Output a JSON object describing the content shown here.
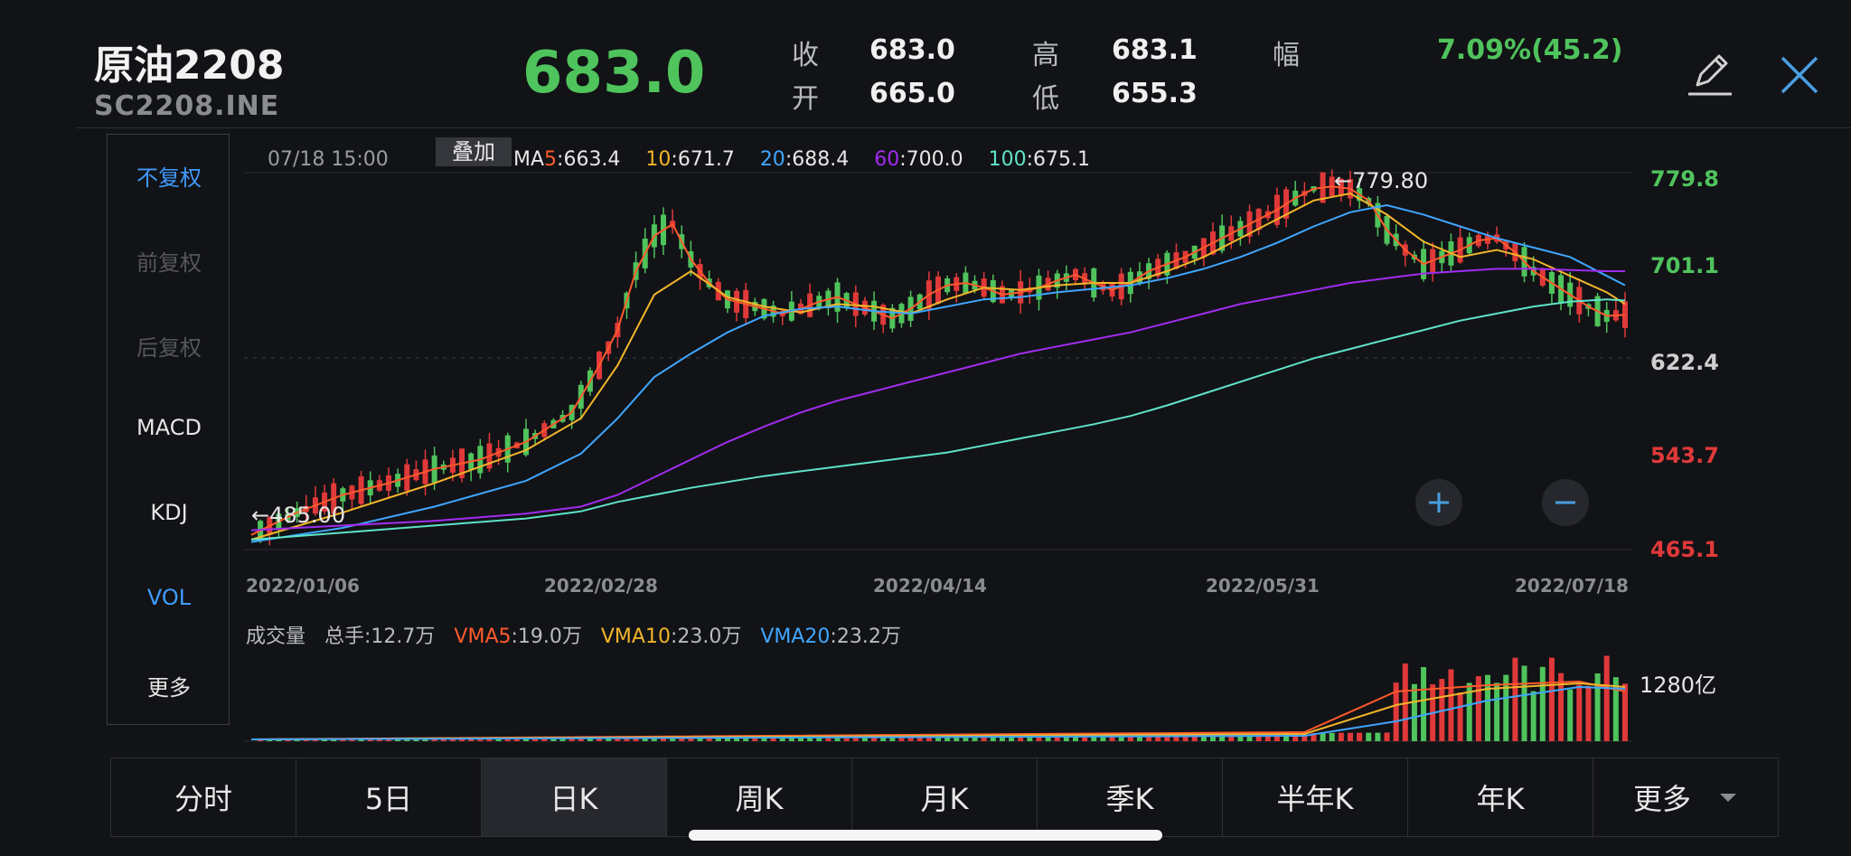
{
  "header": {
    "name": "原油2208",
    "code": "SC2208.INE",
    "last_price": "683.0",
    "close_label": "收",
    "close_value": "683.0",
    "open_label": "开",
    "open_value": "665.0",
    "high_label": "高",
    "high_value": "683.1",
    "low_label": "低",
    "low_value": "655.3",
    "range_label": "幅",
    "range_value": "7.09%(45.2)"
  },
  "side_menu": [
    {
      "label": "不复权",
      "state": "active"
    },
    {
      "label": "前复权",
      "state": "disabled"
    },
    {
      "label": "后复权",
      "state": "disabled"
    },
    {
      "label": "MACD",
      "state": "normal"
    },
    {
      "label": "KDJ",
      "state": "normal"
    },
    {
      "label": "VOL",
      "state": "active"
    },
    {
      "label": "更多",
      "state": "normal"
    }
  ],
  "main_legend": {
    "time": "07/18 15:00",
    "overlay_button": "叠加",
    "ma5_prefix": "MA",
    "ma5_num": "5",
    "ma5_value": ":663.4",
    "ma10_num": "10",
    "ma10_value": ":671.7",
    "ma20_num": "20",
    "ma20_value": ":688.4",
    "ma60_num": "60",
    "ma60_value": ":700.0",
    "ma100_num": "100",
    "ma100_value": ":675.1"
  },
  "volume_legend": {
    "title": "成交量",
    "total_label": "总手:",
    "total_value": "12.7万",
    "vma5_label": "VMA5",
    "vma5_value": ":19.0万",
    "vma10_label": "VMA10",
    "vma10_value": ":23.0万",
    "vma20_label": "VMA20",
    "vma20_value": ":23.2万",
    "axis_label": "1280亿"
  },
  "colors": {
    "up": "#4fc35c",
    "down": "#e0393a",
    "ma5": "#ff5a2c",
    "ma10": "#f2b52a",
    "ma20": "#3fa6ff",
    "ma60": "#a12cf0",
    "ma100": "#5fe3c8",
    "accent": "#3f9bff"
  },
  "chart_data": {
    "type": "candlestick",
    "y_axis_labels": [
      "779.8",
      "701.1",
      "622.4",
      "543.7",
      "465.1"
    ],
    "ylim": [
      465.1,
      779.8
    ],
    "x_axis_labels": [
      "2022/01/06",
      "2022/02/28",
      "2022/04/14",
      "2022/05/31",
      "2022/07/18"
    ],
    "max_annotation": "←779.80",
    "min_annotation": "←485.00",
    "series_names": [
      "MA5",
      "MA10",
      "MA20",
      "MA60",
      "MA100"
    ],
    "ma_points": {
      "MA5": [
        [
          0,
          476
        ],
        [
          5,
          495
        ],
        [
          10,
          510
        ],
        [
          15,
          520
        ],
        [
          20,
          532
        ],
        [
          25,
          540
        ],
        [
          30,
          555
        ],
        [
          35,
          580
        ],
        [
          38,
          620
        ],
        [
          40,
          650
        ],
        [
          42,
          700
        ],
        [
          44,
          730
        ],
        [
          46,
          740
        ],
        [
          48,
          710
        ],
        [
          50,
          690
        ],
        [
          52,
          676
        ],
        [
          54,
          672
        ],
        [
          56,
          668
        ],
        [
          58,
          664
        ],
        [
          60,
          668
        ],
        [
          62,
          674
        ],
        [
          64,
          678
        ],
        [
          66,
          672
        ],
        [
          68,
          666
        ],
        [
          70,
          660
        ],
        [
          72,
          668
        ],
        [
          74,
          680
        ],
        [
          76,
          688
        ],
        [
          78,
          690
        ],
        [
          80,
          686
        ],
        [
          82,
          680
        ],
        [
          84,
          682
        ],
        [
          86,
          686
        ],
        [
          88,
          692
        ],
        [
          90,
          697
        ],
        [
          92,
          690
        ],
        [
          94,
          684
        ],
        [
          96,
          690
        ],
        [
          98,
          700
        ],
        [
          100,
          706
        ],
        [
          102,
          712
        ],
        [
          104,
          720
        ],
        [
          106,
          728
        ],
        [
          108,
          736
        ],
        [
          110,
          744
        ],
        [
          112,
          752
        ],
        [
          114,
          762
        ],
        [
          116,
          770
        ],
        [
          118,
          772
        ],
        [
          120,
          770
        ],
        [
          122,
          760
        ],
        [
          124,
          735
        ],
        [
          126,
          718
        ],
        [
          128,
          706
        ],
        [
          130,
          712
        ],
        [
          132,
          718
        ],
        [
          134,
          726
        ],
        [
          136,
          728
        ],
        [
          138,
          716
        ],
        [
          140,
          700
        ],
        [
          142,
          690
        ],
        [
          144,
          680
        ],
        [
          146,
          670
        ],
        [
          148,
          662
        ],
        [
          150,
          663
        ]
      ],
      "MA10": [
        [
          0,
          472
        ],
        [
          10,
          495
        ],
        [
          20,
          520
        ],
        [
          30,
          548
        ],
        [
          36,
          575
        ],
        [
          40,
          620
        ],
        [
          44,
          680
        ],
        [
          48,
          700
        ],
        [
          52,
          678
        ],
        [
          56,
          670
        ],
        [
          60,
          665
        ],
        [
          64,
          672
        ],
        [
          68,
          670
        ],
        [
          72,
          664
        ],
        [
          76,
          676
        ],
        [
          80,
          686
        ],
        [
          84,
          684
        ],
        [
          88,
          688
        ],
        [
          92,
          690
        ],
        [
          96,
          690
        ],
        [
          100,
          700
        ],
        [
          104,
          712
        ],
        [
          108,
          728
        ],
        [
          112,
          744
        ],
        [
          116,
          760
        ],
        [
          120,
          766
        ],
        [
          124,
          748
        ],
        [
          128,
          725
        ],
        [
          132,
          712
        ],
        [
          136,
          718
        ],
        [
          140,
          710
        ],
        [
          144,
          696
        ],
        [
          148,
          682
        ],
        [
          150,
          672
        ]
      ],
      "MA20": [
        [
          0,
          470
        ],
        [
          10,
          482
        ],
        [
          20,
          500
        ],
        [
          30,
          522
        ],
        [
          36,
          545
        ],
        [
          40,
          575
        ],
        [
          44,
          610
        ],
        [
          48,
          630
        ],
        [
          52,
          648
        ],
        [
          56,
          662
        ],
        [
          60,
          668
        ],
        [
          64,
          670
        ],
        [
          68,
          666
        ],
        [
          72,
          664
        ],
        [
          76,
          670
        ],
        [
          80,
          676
        ],
        [
          84,
          678
        ],
        [
          88,
          682
        ],
        [
          92,
          685
        ],
        [
          96,
          688
        ],
        [
          100,
          694
        ],
        [
          104,
          702
        ],
        [
          108,
          712
        ],
        [
          112,
          724
        ],
        [
          116,
          738
        ],
        [
          120,
          750
        ],
        [
          124,
          756
        ],
        [
          128,
          748
        ],
        [
          132,
          738
        ],
        [
          136,
          728
        ],
        [
          140,
          720
        ],
        [
          144,
          712
        ],
        [
          148,
          696
        ],
        [
          150,
          688
        ]
      ],
      "MA60": [
        [
          0,
          480
        ],
        [
          10,
          484
        ],
        [
          20,
          488
        ],
        [
          30,
          494
        ],
        [
          36,
          500
        ],
        [
          40,
          510
        ],
        [
          44,
          525
        ],
        [
          48,
          540
        ],
        [
          52,
          555
        ],
        [
          56,
          568
        ],
        [
          60,
          580
        ],
        [
          64,
          590
        ],
        [
          68,
          598
        ],
        [
          72,
          606
        ],
        [
          76,
          614
        ],
        [
          80,
          622
        ],
        [
          84,
          630
        ],
        [
          88,
          636
        ],
        [
          92,
          642
        ],
        [
          96,
          648
        ],
        [
          100,
          656
        ],
        [
          104,
          664
        ],
        [
          108,
          672
        ],
        [
          112,
          678
        ],
        [
          116,
          684
        ],
        [
          120,
          690
        ],
        [
          124,
          694
        ],
        [
          128,
          698
        ],
        [
          132,
          700
        ],
        [
          136,
          702
        ],
        [
          140,
          702
        ],
        [
          144,
          701
        ],
        [
          148,
          700
        ],
        [
          150,
          700
        ]
      ],
      "MA100": [
        [
          0,
          472
        ],
        [
          10,
          478
        ],
        [
          20,
          484
        ],
        [
          30,
          490
        ],
        [
          36,
          496
        ],
        [
          40,
          504
        ],
        [
          44,
          510
        ],
        [
          48,
          516
        ],
        [
          52,
          521
        ],
        [
          56,
          526
        ],
        [
          60,
          530
        ],
        [
          64,
          534
        ],
        [
          68,
          538
        ],
        [
          72,
          542
        ],
        [
          76,
          546
        ],
        [
          80,
          552
        ],
        [
          84,
          558
        ],
        [
          88,
          564
        ],
        [
          92,
          570
        ],
        [
          96,
          577
        ],
        [
          100,
          586
        ],
        [
          104,
          596
        ],
        [
          108,
          606
        ],
        [
          112,
          616
        ],
        [
          116,
          626
        ],
        [
          120,
          634
        ],
        [
          124,
          642
        ],
        [
          128,
          650
        ],
        [
          132,
          658
        ],
        [
          136,
          664
        ],
        [
          140,
          670
        ],
        [
          144,
          674
        ],
        [
          148,
          676
        ],
        [
          150,
          675
        ]
      ]
    },
    "volume_ylabel": "1280亿"
  },
  "tabs": [
    {
      "label": "分时",
      "active": false
    },
    {
      "label": "5日",
      "active": false
    },
    {
      "label": "日K",
      "active": true
    },
    {
      "label": "周K",
      "active": false
    },
    {
      "label": "月K",
      "active": false
    },
    {
      "label": "季K",
      "active": false
    },
    {
      "label": "半年K",
      "active": false
    },
    {
      "label": "年K",
      "active": false
    },
    {
      "label": "更多",
      "active": false
    }
  ],
  "icons": {
    "edit": "pencil-icon",
    "close": "close-icon",
    "zoom_in": "plus-icon",
    "zoom_out": "minus-icon",
    "more_dropdown": "triangle-down-icon"
  }
}
